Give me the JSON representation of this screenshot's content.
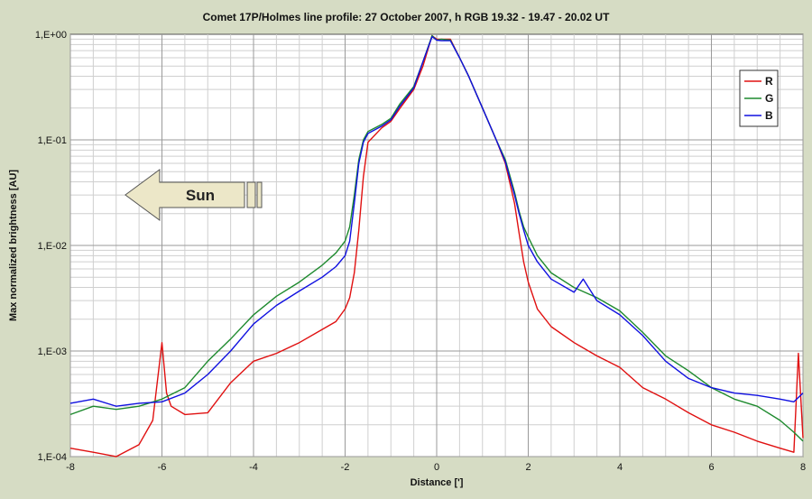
{
  "chart_data": {
    "type": "line",
    "title": "Comet 17P/Holmes line profile:  27 October 2007, h RGB 19.32 - 19.47 - 20.02 UT",
    "xlabel": "Distance [']",
    "ylabel": "Max normalized brightness [AU]",
    "xlim": [
      -8,
      8
    ],
    "ylim": [
      0.0001,
      1
    ],
    "yscale": "log",
    "grid": true,
    "legend_position": "top-right",
    "x_ticks": [
      {
        "value": -8,
        "label": "-8"
      },
      {
        "value": -6,
        "label": "-6"
      },
      {
        "value": -4,
        "label": "-4"
      },
      {
        "value": -2,
        "label": "-2"
      },
      {
        "value": 0,
        "label": "0"
      },
      {
        "value": 2,
        "label": "2"
      },
      {
        "value": 4,
        "label": "4"
      },
      {
        "value": 6,
        "label": "6"
      },
      {
        "value": 8,
        "label": "8"
      }
    ],
    "y_ticks": [
      {
        "value": 1,
        "label": "1,E+00"
      },
      {
        "value": 0.1,
        "label": "1,E-01"
      },
      {
        "value": 0.01,
        "label": "1,E-02"
      },
      {
        "value": 0.001,
        "label": "1,E-03"
      },
      {
        "value": 0.0001,
        "label": "1,E-04"
      }
    ],
    "annotation": {
      "text": "Sun",
      "from_x": -4,
      "to_x": -6.8,
      "y": 0.0045
    },
    "series": [
      {
        "name": "R",
        "color": "#e01010",
        "x": [
          -8,
          -7.5,
          -7,
          -6.5,
          -6.2,
          -6,
          -5.9,
          -5.8,
          -5.5,
          -5,
          -4.5,
          -4,
          -3.5,
          -3,
          -2.5,
          -2.2,
          -2,
          -1.9,
          -1.8,
          -1.7,
          -1.6,
          -1.5,
          -1.2,
          -1,
          -0.8,
          -0.5,
          -0.3,
          -0.1,
          0,
          0.1,
          0.3,
          0.5,
          0.7,
          1,
          1.3,
          1.5,
          1.7,
          1.8,
          1.9,
          2,
          2.2,
          2.5,
          3,
          3.5,
          4,
          4.5,
          5,
          5.5,
          6,
          6.5,
          7,
          7.5,
          7.8,
          7.9,
          8
        ],
        "y": [
          0.00012,
          0.00011,
          0.0001,
          0.00013,
          0.00022,
          0.0012,
          0.0004,
          0.0003,
          0.00025,
          0.00026,
          0.0005,
          0.0008,
          0.00095,
          0.0012,
          0.0016,
          0.0019,
          0.0025,
          0.0032,
          0.0055,
          0.014,
          0.045,
          0.095,
          0.13,
          0.15,
          0.2,
          0.3,
          0.5,
          0.97,
          0.9,
          0.9,
          0.9,
          0.6,
          0.4,
          0.2,
          0.1,
          0.06,
          0.025,
          0.013,
          0.007,
          0.0045,
          0.0025,
          0.0017,
          0.0012,
          0.0009,
          0.0007,
          0.00045,
          0.00035,
          0.00026,
          0.0002,
          0.00017,
          0.00014,
          0.00012,
          0.00011,
          0.00095,
          0.00015
        ]
      },
      {
        "name": "G",
        "color": "#1e8a2e",
        "x": [
          -8,
          -7.5,
          -7,
          -6.5,
          -6,
          -5.5,
          -5,
          -4.5,
          -4,
          -3.5,
          -3,
          -2.5,
          -2.2,
          -2,
          -1.9,
          -1.8,
          -1.7,
          -1.6,
          -1.5,
          -1.2,
          -1,
          -0.8,
          -0.5,
          -0.3,
          -0.1,
          0,
          0.1,
          0.3,
          0.5,
          0.7,
          1,
          1.3,
          1.5,
          1.7,
          1.8,
          1.9,
          2,
          2.2,
          2.5,
          3,
          3.5,
          4,
          4.5,
          5,
          5.5,
          6,
          6.5,
          7,
          7.5,
          7.8,
          8
        ],
        "y": [
          0.00025,
          0.0003,
          0.00028,
          0.0003,
          0.00035,
          0.00045,
          0.0008,
          0.0013,
          0.0022,
          0.0033,
          0.0045,
          0.0065,
          0.0085,
          0.011,
          0.015,
          0.03,
          0.065,
          0.1,
          0.12,
          0.14,
          0.16,
          0.22,
          0.32,
          0.55,
          0.97,
          0.88,
          0.9,
          0.88,
          0.6,
          0.4,
          0.2,
          0.1,
          0.065,
          0.032,
          0.021,
          0.015,
          0.012,
          0.008,
          0.0055,
          0.004,
          0.0032,
          0.0024,
          0.0015,
          0.0009,
          0.00065,
          0.00045,
          0.00035,
          0.0003,
          0.00022,
          0.00017,
          0.00014
        ]
      },
      {
        "name": "B",
        "color": "#1010e0",
        "x": [
          -8,
          -7.5,
          -7,
          -6.5,
          -6,
          -5.5,
          -5,
          -4.5,
          -4,
          -3.5,
          -3,
          -2.5,
          -2.2,
          -2,
          -1.9,
          -1.8,
          -1.7,
          -1.6,
          -1.5,
          -1.2,
          -1,
          -0.8,
          -0.5,
          -0.3,
          -0.1,
          0,
          0.1,
          0.3,
          0.5,
          0.7,
          1,
          1.3,
          1.5,
          1.7,
          1.8,
          1.9,
          2,
          2.2,
          2.5,
          3,
          3.2,
          3.5,
          4,
          4.5,
          5,
          5.5,
          6,
          6.5,
          7,
          7.5,
          7.8,
          8
        ],
        "y": [
          0.00032,
          0.00035,
          0.0003,
          0.00032,
          0.00033,
          0.0004,
          0.0006,
          0.001,
          0.0018,
          0.0027,
          0.0037,
          0.005,
          0.0063,
          0.008,
          0.011,
          0.025,
          0.06,
          0.095,
          0.115,
          0.135,
          0.155,
          0.21,
          0.31,
          0.55,
          0.95,
          0.88,
          0.87,
          0.87,
          0.6,
          0.4,
          0.2,
          0.1,
          0.062,
          0.03,
          0.02,
          0.014,
          0.01,
          0.007,
          0.0048,
          0.0036,
          0.0048,
          0.003,
          0.0022,
          0.0014,
          0.0008,
          0.00055,
          0.00045,
          0.0004,
          0.00038,
          0.00035,
          0.00033,
          0.0004
        ]
      }
    ]
  }
}
